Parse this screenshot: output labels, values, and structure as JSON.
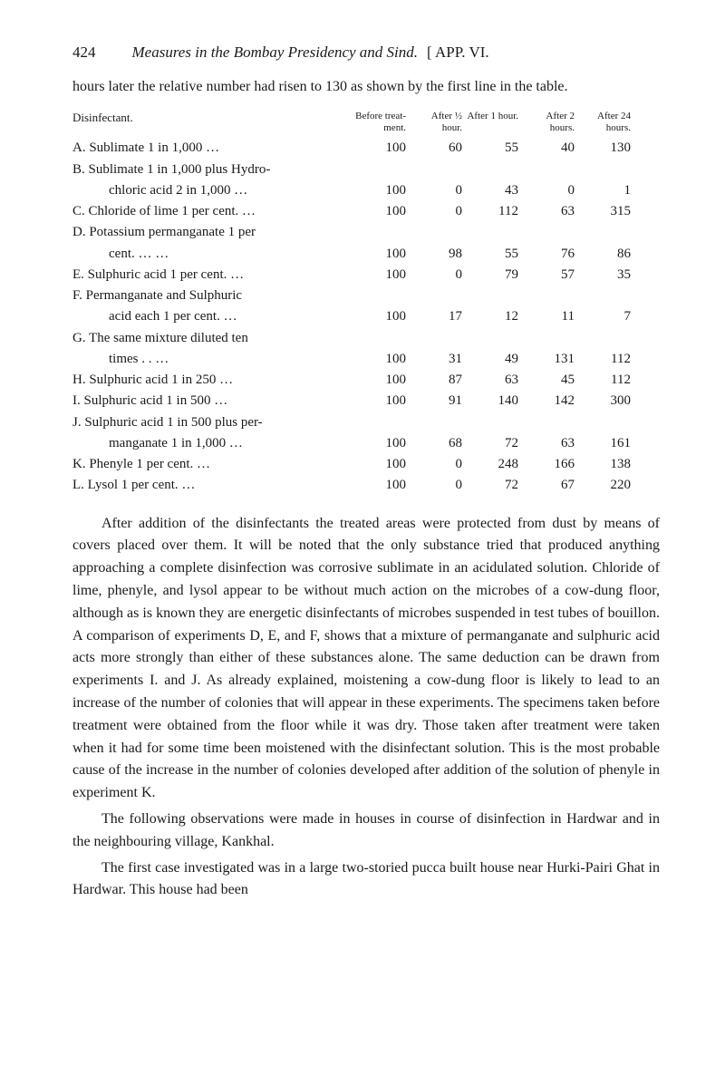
{
  "page_number": "424",
  "running_title": "Measures in the Bombay Presidency and Sind.",
  "running_app": "[ APP. VI.",
  "intro": "hours later the relative number had risen to 130 as shown by the first line in the table.",
  "table": {
    "header_label": "Disinfectant.",
    "cols": [
      "Before treat-\nment.",
      "After ½\nhour.",
      "After 1\nhour.",
      "After 2\nhours.",
      "After 24\nhours."
    ],
    "rows": [
      {
        "label": "A. Sublimate 1 in 1,000            …",
        "vals": [
          "100",
          "60",
          "55",
          "40",
          "130"
        ]
      },
      {
        "label": "B. Sublimate 1 in 1,000 plus Hydro-",
        "vals": [
          "",
          "",
          "",
          "",
          ""
        ]
      },
      {
        "label": "chloric acid 2 in 1,000         …",
        "indent": true,
        "vals": [
          "100",
          "0",
          "43",
          "0",
          "1"
        ]
      },
      {
        "label": "C. Chloride of lime 1 per cent.    …",
        "vals": [
          "100",
          "0",
          "112",
          "63",
          "315"
        ]
      },
      {
        "label": "D. Potassium permanganate 1 per",
        "vals": [
          "",
          "",
          "",
          "",
          ""
        ]
      },
      {
        "label": "cent.               …            …",
        "indent": true,
        "vals": [
          "100",
          "98",
          "55",
          "76",
          "86"
        ]
      },
      {
        "label": "E. Sulphuric acid 1 per cent.      …",
        "vals": [
          "100",
          "0",
          "79",
          "57",
          "35"
        ]
      },
      {
        "label": "F. Permanganate and Sulphuric",
        "vals": [
          "",
          "",
          "",
          "",
          ""
        ]
      },
      {
        "label": "acid each 1 per cent.           …",
        "indent": true,
        "vals": [
          "100",
          "17",
          "12",
          "11",
          "7"
        ]
      },
      {
        "label": "G. The same mixture diluted ten",
        "vals": [
          "",
          "",
          "",
          "",
          ""
        ]
      },
      {
        "label": "times            . .             …",
        "indent": true,
        "vals": [
          "100",
          "31",
          "49",
          "131",
          "112"
        ]
      },
      {
        "label": "H. Sulphuric acid 1 in 250         …",
        "vals": [
          "100",
          "87",
          "63",
          "45",
          "112"
        ]
      },
      {
        "label": "I. Sulphuric acid 1 in 500         …",
        "vals": [
          "100",
          "91",
          "140",
          "142",
          "300"
        ]
      },
      {
        "label": "J. Sulphuric acid 1 in 500 plus per-",
        "vals": [
          "",
          "",
          "",
          "",
          ""
        ]
      },
      {
        "label": "manganate 1 in 1,000           …",
        "indent": true,
        "vals": [
          "100",
          "68",
          "72",
          "63",
          "161"
        ]
      },
      {
        "label": "K. Phenyle 1 per cent.             …",
        "vals": [
          "100",
          "0",
          "248",
          "166",
          "138"
        ]
      },
      {
        "label": "L. Lysol 1 per cent.               …",
        "vals": [
          "100",
          "0",
          "72",
          "67",
          "220"
        ]
      }
    ]
  },
  "para1": "After addition of the disinfectants the treated areas were protected from dust by means of covers placed over them. It will be noted that the only substance tried that produced anything approaching a complete disinfection was corrosive sublimate in an acidulated solution. Chloride of lime, phenyle, and lysol appear to be without much action on the microbes of a cow-dung floor, although as is known they are energetic disinfectants of microbes suspended in test tubes of bouillon. A comparison of experiments D, E, and F, shows that a mixture of permanganate and sulphuric acid acts more strongly than either of these substances alone. The same deduction can be drawn from experiments I. and J. As already explained, moistening a cow-dung floor is likely to lead to an increase of the number of colonies that will appear in these experiments. The specimens taken before treatment were obtained from the floor while it was dry. Those taken after treatment were taken when it had for some time been moistened with the disinfectant solution. This is the most probable cause of the increase in the number of colonies developed after addition of the solution of phenyle in experiment K.",
  "para2": "The following observations were made in houses in course of disinfection in Hardwar and in the neighbouring village, Kankhal.",
  "para3": "The first case investigated was in a large two-storied pucca built house near Hurki-Pairi Ghat in Hardwar. This house had been"
}
